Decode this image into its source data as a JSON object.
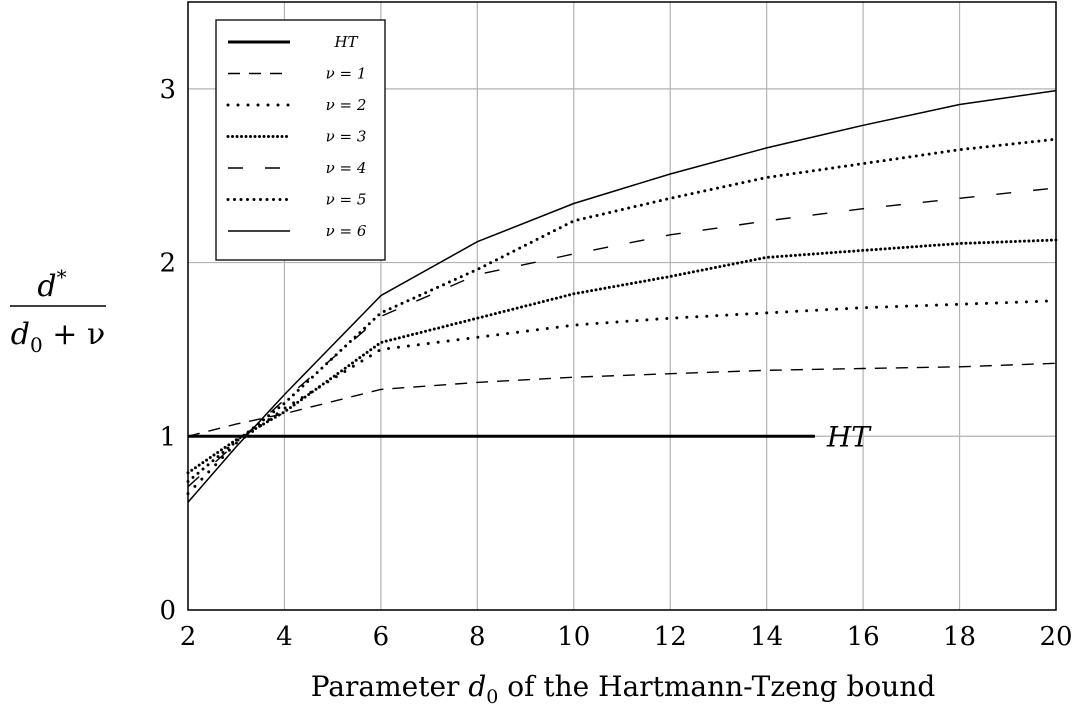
{
  "chart_data": {
    "type": "line",
    "title": "",
    "xlabel": "Parameter d0 of the Hartmann-Tzeng bound",
    "xlabel_prefix": "Parameter ",
    "xlabel_symbol": "d",
    "xlabel_sub": "0",
    "xlabel_suffix": " of the Hartmann-Tzeng bound",
    "ylabel": "d* / (d0 + ν)",
    "ylabel_num": "d",
    "ylabel_num_sup": "*",
    "ylabel_den": "d",
    "ylabel_den_sub": "0",
    "ylabel_den_rest": " + ν",
    "xlim": [
      2,
      20
    ],
    "ylim": [
      0,
      3.5
    ],
    "xticks": [
      "2",
      "4",
      "6",
      "8",
      "10",
      "12",
      "14",
      "16",
      "18",
      "20"
    ],
    "yticks": [
      "0",
      "1",
      "2",
      "3"
    ],
    "grid": true,
    "legend_position": "top-left",
    "annotation": "HT",
    "series": [
      {
        "name": "HT",
        "style": "thick-solid",
        "x": [
          2,
          15
        ],
        "y": [
          1,
          1
        ]
      },
      {
        "name": "ν = 1",
        "style": "dashed",
        "x": [
          2,
          3,
          4,
          6,
          8,
          10,
          12,
          14,
          16,
          18,
          20
        ],
        "y": [
          1.0,
          1.07,
          1.13,
          1.27,
          1.31,
          1.34,
          1.36,
          1.38,
          1.39,
          1.4,
          1.42
        ]
      },
      {
        "name": "ν = 2",
        "style": "dotted",
        "x": [
          2,
          3,
          4,
          6,
          8,
          10,
          12,
          14,
          16,
          18,
          20
        ],
        "y": [
          0.67,
          0.96,
          1.16,
          1.5,
          1.57,
          1.64,
          1.68,
          1.71,
          1.74,
          1.76,
          1.78
        ]
      },
      {
        "name": "ν = 3",
        "style": "dense-dotted",
        "x": [
          2,
          3,
          4,
          6,
          8,
          10,
          12,
          14,
          16,
          18,
          20
        ],
        "y": [
          0.79,
          0.98,
          1.14,
          1.54,
          1.68,
          1.82,
          1.92,
          2.03,
          2.07,
          2.11,
          2.13
        ]
      },
      {
        "name": "ν = 4",
        "style": "loose-dashed",
        "x": [
          2,
          3,
          4,
          6,
          8,
          10,
          12,
          14,
          16,
          18,
          20
        ],
        "y": [
          0.71,
          0.96,
          1.21,
          1.69,
          1.93,
          2.05,
          2.16,
          2.24,
          2.31,
          2.37,
          2.43
        ]
      },
      {
        "name": "ν = 5",
        "style": "dotted-2",
        "x": [
          2,
          3,
          4,
          6,
          8,
          10,
          12,
          14,
          16,
          18,
          20
        ],
        "y": [
          0.74,
          0.97,
          1.19,
          1.71,
          1.96,
          2.24,
          2.37,
          2.49,
          2.57,
          2.65,
          2.71
        ]
      },
      {
        "name": "ν = 6",
        "style": "thin-solid",
        "x": [
          2,
          3,
          4,
          6,
          8,
          10,
          12,
          14,
          16,
          18,
          20
        ],
        "y": [
          0.62,
          0.94,
          1.24,
          1.81,
          2.12,
          2.34,
          2.51,
          2.66,
          2.79,
          2.91,
          2.99
        ]
      }
    ]
  }
}
